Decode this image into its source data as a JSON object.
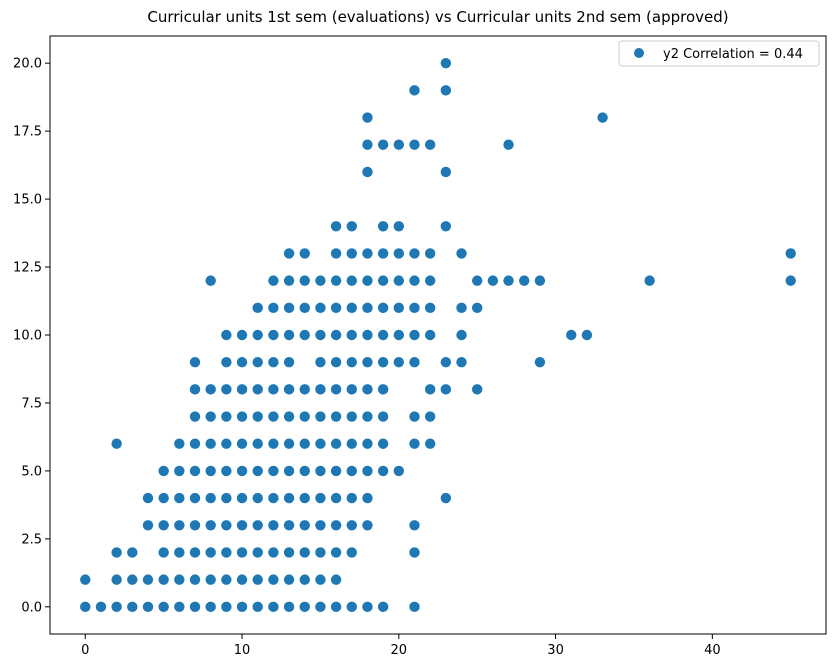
{
  "chart_data": {
    "type": "scatter",
    "title": "Curricular units 1st sem (evaluations) vs Curricular units 2nd sem (approved)",
    "xlabel": "",
    "ylabel": "",
    "xlim": [
      -2.25,
      47.25
    ],
    "ylim": [
      -1.0,
      21.0
    ],
    "x_ticks": [
      0,
      10,
      20,
      30,
      40
    ],
    "y_ticks": [
      0.0,
      2.5,
      5.0,
      7.5,
      10.0,
      12.5,
      15.0,
      17.5,
      20.0
    ],
    "y_tick_labels": [
      "0.0",
      "2.5",
      "5.0",
      "7.5",
      "10.0",
      "12.5",
      "15.0",
      "17.5",
      "20.0"
    ],
    "grid": false,
    "legend_position": "top-right",
    "marker_color": "#1f77b4",
    "series": [
      {
        "name": "y2 Correlation = 0.44",
        "points": [
          [
            0,
            0
          ],
          [
            0,
            1
          ],
          [
            1,
            0
          ],
          [
            2,
            0
          ],
          [
            2,
            1
          ],
          [
            2,
            2
          ],
          [
            2,
            6
          ],
          [
            3,
            0
          ],
          [
            3,
            1
          ],
          [
            3,
            2
          ],
          [
            4,
            0
          ],
          [
            4,
            1
          ],
          [
            4,
            3
          ],
          [
            4,
            4
          ],
          [
            5,
            0
          ],
          [
            5,
            1
          ],
          [
            5,
            2
          ],
          [
            5,
            3
          ],
          [
            5,
            4
          ],
          [
            5,
            5
          ],
          [
            6,
            0
          ],
          [
            6,
            1
          ],
          [
            6,
            2
          ],
          [
            6,
            3
          ],
          [
            6,
            4
          ],
          [
            6,
            5
          ],
          [
            6,
            6
          ],
          [
            7,
            0
          ],
          [
            7,
            1
          ],
          [
            7,
            2
          ],
          [
            7,
            3
          ],
          [
            7,
            4
          ],
          [
            7,
            5
          ],
          [
            7,
            6
          ],
          [
            7,
            7
          ],
          [
            7,
            8
          ],
          [
            7,
            9
          ],
          [
            8,
            0
          ],
          [
            8,
            1
          ],
          [
            8,
            2
          ],
          [
            8,
            3
          ],
          [
            8,
            4
          ],
          [
            8,
            5
          ],
          [
            8,
            6
          ],
          [
            8,
            7
          ],
          [
            8,
            8
          ],
          [
            8,
            12
          ],
          [
            9,
            0
          ],
          [
            9,
            1
          ],
          [
            9,
            2
          ],
          [
            9,
            3
          ],
          [
            9,
            4
          ],
          [
            9,
            5
          ],
          [
            9,
            6
          ],
          [
            9,
            7
          ],
          [
            9,
            8
          ],
          [
            9,
            9
          ],
          [
            9,
            10
          ],
          [
            10,
            0
          ],
          [
            10,
            1
          ],
          [
            10,
            2
          ],
          [
            10,
            3
          ],
          [
            10,
            4
          ],
          [
            10,
            5
          ],
          [
            10,
            6
          ],
          [
            10,
            7
          ],
          [
            10,
            8
          ],
          [
            10,
            9
          ],
          [
            10,
            10
          ],
          [
            11,
            0
          ],
          [
            11,
            1
          ],
          [
            11,
            2
          ],
          [
            11,
            3
          ],
          [
            11,
            4
          ],
          [
            11,
            5
          ],
          [
            11,
            6
          ],
          [
            11,
            7
          ],
          [
            11,
            8
          ],
          [
            11,
            9
          ],
          [
            11,
            10
          ],
          [
            11,
            11
          ],
          [
            12,
            0
          ],
          [
            12,
            1
          ],
          [
            12,
            2
          ],
          [
            12,
            3
          ],
          [
            12,
            4
          ],
          [
            12,
            5
          ],
          [
            12,
            6
          ],
          [
            12,
            7
          ],
          [
            12,
            8
          ],
          [
            12,
            9
          ],
          [
            12,
            10
          ],
          [
            12,
            11
          ],
          [
            12,
            12
          ],
          [
            13,
            0
          ],
          [
            13,
            1
          ],
          [
            13,
            2
          ],
          [
            13,
            3
          ],
          [
            13,
            4
          ],
          [
            13,
            5
          ],
          [
            13,
            6
          ],
          [
            13,
            7
          ],
          [
            13,
            8
          ],
          [
            13,
            9
          ],
          [
            13,
            10
          ],
          [
            13,
            11
          ],
          [
            13,
            12
          ],
          [
            13,
            13
          ],
          [
            14,
            0
          ],
          [
            14,
            1
          ],
          [
            14,
            2
          ],
          [
            14,
            3
          ],
          [
            14,
            4
          ],
          [
            14,
            5
          ],
          [
            14,
            6
          ],
          [
            14,
            7
          ],
          [
            14,
            8
          ],
          [
            14,
            10
          ],
          [
            14,
            11
          ],
          [
            14,
            12
          ],
          [
            14,
            13
          ],
          [
            15,
            0
          ],
          [
            15,
            1
          ],
          [
            15,
            2
          ],
          [
            15,
            3
          ],
          [
            15,
            4
          ],
          [
            15,
            5
          ],
          [
            15,
            6
          ],
          [
            15,
            7
          ],
          [
            15,
            8
          ],
          [
            15,
            9
          ],
          [
            15,
            10
          ],
          [
            15,
            11
          ],
          [
            15,
            12
          ],
          [
            16,
            0
          ],
          [
            16,
            1
          ],
          [
            16,
            2
          ],
          [
            16,
            3
          ],
          [
            16,
            4
          ],
          [
            16,
            5
          ],
          [
            16,
            6
          ],
          [
            16,
            7
          ],
          [
            16,
            8
          ],
          [
            16,
            9
          ],
          [
            16,
            10
          ],
          [
            16,
            11
          ],
          [
            16,
            12
          ],
          [
            16,
            13
          ],
          [
            16,
            14
          ],
          [
            17,
            0
          ],
          [
            17,
            2
          ],
          [
            17,
            3
          ],
          [
            17,
            4
          ],
          [
            17,
            5
          ],
          [
            17,
            6
          ],
          [
            17,
            7
          ],
          [
            17,
            8
          ],
          [
            17,
            9
          ],
          [
            17,
            10
          ],
          [
            17,
            11
          ],
          [
            17,
            12
          ],
          [
            17,
            13
          ],
          [
            17,
            14
          ],
          [
            18,
            0
          ],
          [
            18,
            3
          ],
          [
            18,
            4
          ],
          [
            18,
            5
          ],
          [
            18,
            6
          ],
          [
            18,
            7
          ],
          [
            18,
            8
          ],
          [
            18,
            9
          ],
          [
            18,
            10
          ],
          [
            18,
            11
          ],
          [
            18,
            12
          ],
          [
            18,
            13
          ],
          [
            18,
            16
          ],
          [
            18,
            17
          ],
          [
            18,
            18
          ],
          [
            19,
            0
          ],
          [
            19,
            5
          ],
          [
            19,
            6
          ],
          [
            19,
            7
          ],
          [
            19,
            8
          ],
          [
            19,
            9
          ],
          [
            19,
            10
          ],
          [
            19,
            11
          ],
          [
            19,
            12
          ],
          [
            19,
            13
          ],
          [
            19,
            14
          ],
          [
            19,
            17
          ],
          [
            20,
            5
          ],
          [
            20,
            9
          ],
          [
            20,
            10
          ],
          [
            20,
            11
          ],
          [
            20,
            12
          ],
          [
            20,
            13
          ],
          [
            20,
            14
          ],
          [
            20,
            17
          ],
          [
            21,
            0
          ],
          [
            21,
            2
          ],
          [
            21,
            3
          ],
          [
            21,
            6
          ],
          [
            21,
            7
          ],
          [
            21,
            9
          ],
          [
            21,
            10
          ],
          [
            21,
            11
          ],
          [
            21,
            12
          ],
          [
            21,
            13
          ],
          [
            21,
            17
          ],
          [
            21,
            19
          ],
          [
            22,
            6
          ],
          [
            22,
            7
          ],
          [
            22,
            8
          ],
          [
            22,
            10
          ],
          [
            22,
            11
          ],
          [
            22,
            12
          ],
          [
            22,
            13
          ],
          [
            22,
            17
          ],
          [
            23,
            4
          ],
          [
            23,
            8
          ],
          [
            23,
            9
          ],
          [
            23,
            14
          ],
          [
            23,
            16
          ],
          [
            23,
            19
          ],
          [
            23,
            20
          ],
          [
            24,
            9
          ],
          [
            24,
            10
          ],
          [
            24,
            11
          ],
          [
            24,
            13
          ],
          [
            25,
            8
          ],
          [
            25,
            11
          ],
          [
            25,
            12
          ],
          [
            26,
            12
          ],
          [
            27,
            12
          ],
          [
            27,
            17
          ],
          [
            28,
            12
          ],
          [
            29,
            9
          ],
          [
            29,
            12
          ],
          [
            31,
            10
          ],
          [
            32,
            10
          ],
          [
            33,
            18
          ],
          [
            36,
            12
          ],
          [
            45,
            12
          ],
          [
            45,
            13
          ]
        ]
      }
    ]
  }
}
